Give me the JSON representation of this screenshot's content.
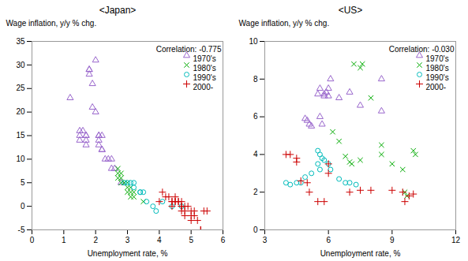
{
  "chart_data": [
    {
      "type": "scatter",
      "title": "<Japan>",
      "xlabel": "Unemployment rate, %",
      "ylabel": "Wage inflation, y/y % chg.",
      "annotation": "Correlation: -0.775",
      "legend": "upper right",
      "grid": false,
      "xlim": [
        0,
        6
      ],
      "ylim": [
        -5,
        35
      ],
      "xticks": [
        0,
        1,
        2,
        3,
        4,
        5,
        6
      ],
      "yticks": [
        -5,
        0,
        5,
        10,
        15,
        20,
        25,
        30,
        35
      ],
      "series": [
        {
          "name": "1970's",
          "color": "#9966cc",
          "marker": "triangle",
          "x": [
            1.2,
            1.5,
            1.5,
            1.5,
            1.6,
            1.7,
            1.7,
            1.7,
            1.7,
            1.8,
            1.8,
            1.8,
            1.9,
            1.9,
            2.0,
            2.0,
            2.1,
            2.1,
            2.1,
            2.1,
            2.2,
            2.2,
            2.2,
            2.3,
            2.4,
            2.5,
            2.5,
            2.6,
            2.8
          ],
          "values": [
            23,
            16,
            15,
            14,
            16,
            15,
            15,
            14,
            13,
            29,
            29,
            28,
            26,
            21,
            20,
            31,
            15,
            15,
            14,
            13,
            15,
            12,
            12,
            10,
            10,
            8,
            10,
            8,
            5
          ]
        },
        {
          "name": "1980's",
          "color": "#00aa00",
          "marker": "x",
          "x": [
            2.7,
            2.7,
            2.7,
            2.8,
            2.8,
            2.8,
            2.9,
            2.9,
            3.0,
            3.0,
            3.0,
            3.1,
            3.1,
            3.1,
            3.2,
            3.2,
            3.5
          ],
          "values": [
            7,
            6,
            8,
            5,
            6,
            7,
            5,
            5,
            5,
            4,
            3,
            4,
            3,
            2,
            3,
            2,
            1
          ]
        },
        {
          "name": "1990's",
          "color": "#00bbbb",
          "marker": "circle",
          "x": [
            2.9,
            3.0,
            3.1,
            3.2,
            3.2,
            3.4,
            3.4,
            3.5,
            3.6,
            3.8,
            3.9,
            4.1,
            4.4,
            4.7
          ],
          "values": [
            5,
            5,
            5,
            4,
            5,
            3,
            3,
            3,
            1,
            0,
            -1,
            1,
            0,
            0
          ]
        },
        {
          "name": "2000-",
          "color": "#cc0000",
          "marker": "plus",
          "x": [
            4.0,
            4.1,
            4.2,
            4.3,
            4.4,
            4.4,
            4.4,
            4.5,
            4.5,
            4.5,
            4.6,
            4.6,
            4.7,
            4.7,
            4.7,
            4.7,
            4.8,
            4.8,
            4.8,
            4.9,
            5.0,
            5.0,
            5.0,
            5.1,
            5.1,
            5.2,
            5.3,
            5.3,
            5.4,
            5.5
          ],
          "values": [
            1,
            3,
            2,
            2,
            1,
            1,
            0,
            2,
            1,
            1,
            1,
            1,
            0,
            1,
            0,
            -1,
            0,
            -1,
            -2,
            0,
            -1,
            -2,
            -3,
            -1,
            -2,
            -3,
            -5,
            -5,
            -1,
            -1
          ]
        }
      ]
    },
    {
      "type": "scatter",
      "title": "<US>",
      "xlabel": "Unemployment rate, %",
      "ylabel": "Wage inflation, y/y % chg.",
      "annotation": "Correlation: -0.030",
      "legend": "upper right",
      "grid": false,
      "xlim": [
        3,
        12
      ],
      "ylim": [
        0,
        10
      ],
      "xticks": [
        3,
        6,
        9,
        12
      ],
      "yticks": [
        0,
        2,
        4,
        6,
        8,
        10
      ],
      "series": [
        {
          "name": "1970's",
          "color": "#9966cc",
          "marker": "triangle",
          "x": [
            4.9,
            5.0,
            5.1,
            5.2,
            5.5,
            5.6,
            5.6,
            5.7,
            5.8,
            5.8,
            5.9,
            6.0,
            6.0,
            6.1,
            6.5,
            7.0,
            7.5,
            8.5,
            8.5
          ],
          "values": [
            5.9,
            5.8,
            5.6,
            5.5,
            7.2,
            6.0,
            7.5,
            5.6,
            7.2,
            7.1,
            7.3,
            7.1,
            7.5,
            8.0,
            7.0,
            7.3,
            6.6,
            6.3,
            8.0
          ]
        },
        {
          "name": "1980's",
          "color": "#00aa00",
          "marker": "x",
          "x": [
            6.2,
            6.5,
            6.8,
            7.0,
            7.1,
            7.2,
            7.5,
            7.5,
            7.6,
            8.0,
            8.5,
            8.5,
            9.0,
            9.5,
            9.6,
            9.7,
            10.0,
            10.1
          ],
          "values": [
            5.2,
            4.7,
            3.9,
            3.6,
            3.5,
            8.8,
            3.7,
            8.6,
            8.8,
            7.0,
            4.0,
            4.5,
            3.5,
            3.2,
            2.0,
            1.8,
            4.2,
            4.0
          ]
        },
        {
          "name": "1990's",
          "color": "#00bbbb",
          "marker": "circle",
          "x": [
            4.0,
            4.2,
            4.5,
            4.7,
            4.9,
            5.2,
            5.5,
            5.5,
            5.6,
            5.6,
            5.7,
            5.8,
            6.0,
            6.1,
            6.5,
            6.8,
            7.0,
            7.3
          ],
          "values": [
            2.5,
            2.4,
            2.5,
            2.5,
            2.8,
            3.0,
            3.5,
            4.2,
            3.2,
            4.0,
            3.8,
            3.7,
            3.5,
            3.2,
            2.7,
            2.5,
            2.5,
            2.4
          ]
        },
        {
          "name": "2000-",
          "color": "#cc0000",
          "marker": "plus",
          "x": [
            4.0,
            4.2,
            4.5,
            4.5,
            4.7,
            5.0,
            5.1,
            5.5,
            5.8,
            6.0,
            6.0,
            7.0,
            7.5,
            8.0,
            9.0,
            9.5,
            9.6,
            9.8,
            10.0
          ],
          "values": [
            4.0,
            4.0,
            3.8,
            3.6,
            2.6,
            2.5,
            2.0,
            1.5,
            1.5,
            3.5,
            3.0,
            2.0,
            2.1,
            2.1,
            2.1,
            2.0,
            1.5,
            1.8,
            1.9
          ]
        }
      ]
    }
  ]
}
